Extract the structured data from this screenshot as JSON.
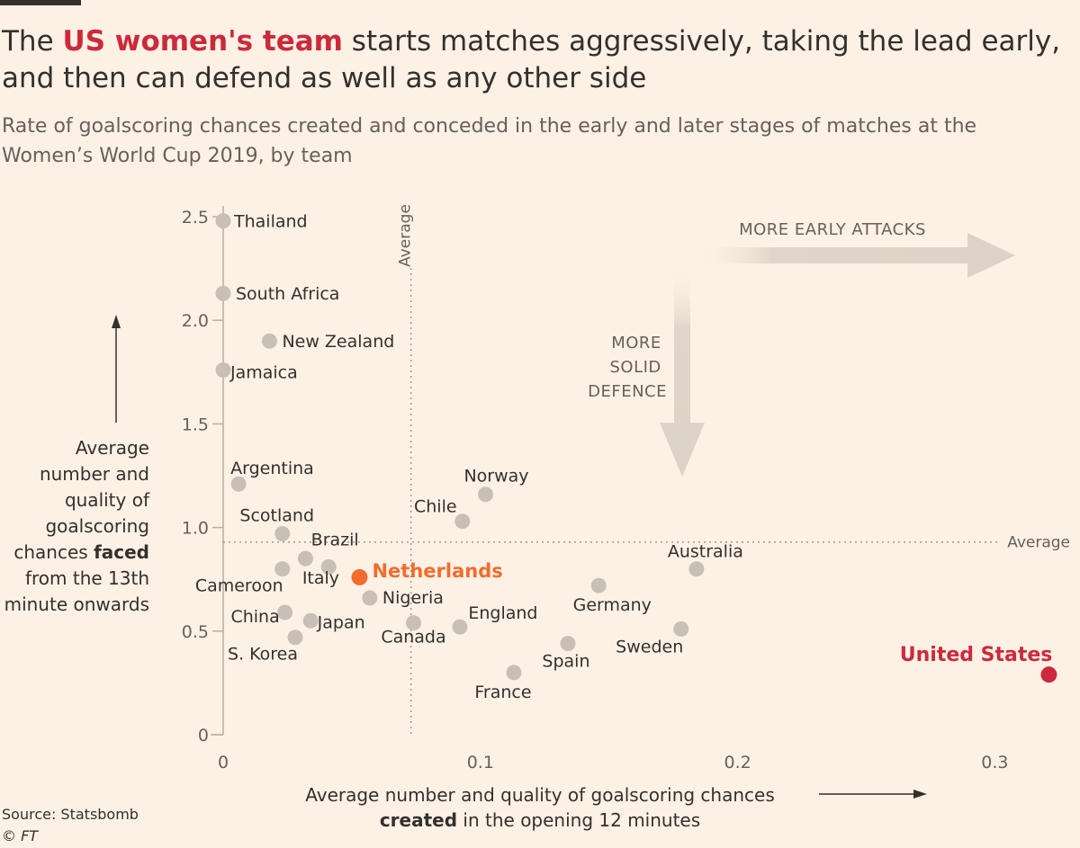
{
  "header": {
    "title_before": "The ",
    "title_highlight": "US women's team",
    "title_after": " starts matches aggressively, taking the lead early, and then can defend as well as any other side",
    "subtitle": "Rate of goalscoring chances created and conceded in the early and later stages of matches at the Women’s World Cup 2019, by team"
  },
  "axes": {
    "ylabel_pre": "Average number and quality of goalscoring chances ",
    "ylabel_bold": "faced",
    "ylabel_post": " from the 13th minute onwards",
    "xlabel_pre": "Average number and quality of goalscoring chances ",
    "xlabel_bold": "created",
    "xlabel_post": " in the opening 12 minutes",
    "avg_label": "Average"
  },
  "annotations": {
    "more_early_attacks": "MORE EARLY ATTACKS",
    "more_solid_defence": [
      "MORE",
      "SOLID",
      "DEFENCE"
    ]
  },
  "footer": {
    "source": "Source: Statsbomb",
    "copyright": "© FT"
  },
  "colors": {
    "background": "#fdf1e5",
    "point_default": "#c8bfb7",
    "netherlands": "#f26c2e",
    "united_states": "#cc2a3c",
    "arrow": "#dcd2c7"
  },
  "chart_data": {
    "type": "scatter",
    "xlim": [
      0,
      0.32
    ],
    "ylim": [
      0,
      2.5
    ],
    "x_ticks": [
      0,
      0.1,
      0.2,
      0.3
    ],
    "x_tick_labels": [
      "0",
      "0.1",
      "0.2",
      "0.3"
    ],
    "y_ticks": [
      0,
      0.5,
      1.0,
      1.5,
      2.0,
      2.5
    ],
    "y_tick_labels": [
      "0",
      "0.5",
      "1.0",
      "1.5",
      "2.0",
      "2.5"
    ],
    "average_x": 0.073,
    "average_y": 0.93,
    "grid": false,
    "points": [
      {
        "label": "Thailand",
        "x": 0.0,
        "y": 2.48
      },
      {
        "label": "South Africa",
        "x": 0.0,
        "y": 2.13
      },
      {
        "label": "New Zealand",
        "x": 0.018,
        "y": 1.9
      },
      {
        "label": "Jamaica",
        "x": 0.0,
        "y": 1.76
      },
      {
        "label": "Argentina",
        "x": 0.006,
        "y": 1.21
      },
      {
        "label": "Norway",
        "x": 0.102,
        "y": 1.16
      },
      {
        "label": "Chile",
        "x": 0.093,
        "y": 1.03
      },
      {
        "label": "Scotland",
        "x": 0.023,
        "y": 0.97
      },
      {
        "label": "Brazil",
        "x": 0.041,
        "y": 0.81
      },
      {
        "label": "Australia",
        "x": 0.184,
        "y": 0.8
      },
      {
        "label": "Cameroon",
        "x": 0.023,
        "y": 0.8
      },
      {
        "label": "Italy",
        "x": 0.032,
        "y": 0.85
      },
      {
        "label": "Netherlands",
        "x": 0.053,
        "y": 0.76,
        "highlight": "netherlands"
      },
      {
        "label": "Germany",
        "x": 0.146,
        "y": 0.72
      },
      {
        "label": "Nigeria",
        "x": 0.057,
        "y": 0.66
      },
      {
        "label": "China",
        "x": 0.024,
        "y": 0.59
      },
      {
        "label": "Japan",
        "x": 0.034,
        "y": 0.55
      },
      {
        "label": "Canada",
        "x": 0.074,
        "y": 0.54
      },
      {
        "label": "England",
        "x": 0.092,
        "y": 0.52
      },
      {
        "label": "Sweden",
        "x": 0.178,
        "y": 0.51
      },
      {
        "label": "S. Korea",
        "x": 0.028,
        "y": 0.47
      },
      {
        "label": "Spain",
        "x": 0.134,
        "y": 0.44
      },
      {
        "label": "France",
        "x": 0.113,
        "y": 0.3
      },
      {
        "label": "United States",
        "x": 0.321,
        "y": 0.29,
        "highlight": "united_states"
      }
    ]
  }
}
